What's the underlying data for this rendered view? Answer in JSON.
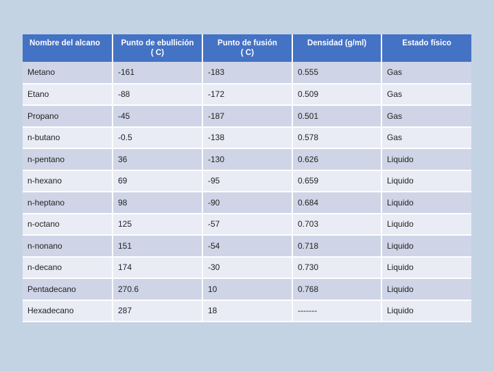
{
  "table": {
    "headers": [
      [
        "Nombre del alcano"
      ],
      [
        "Punto de ebullición",
        "( C)"
      ],
      [
        "Punto de fusión",
        "( C)"
      ],
      [
        "Densidad (g/ml)"
      ],
      [
        "Estado físico"
      ]
    ],
    "rows": [
      [
        "Metano",
        "-161",
        "-183",
        "0.555",
        "Gas"
      ],
      [
        "Etano",
        "-88",
        "-172",
        "0.509",
        "Gas"
      ],
      [
        "Propano",
        "-45",
        "-187",
        "0.501",
        "Gas"
      ],
      [
        "n-butano",
        "-0.5",
        "-138",
        "0.578",
        "Gas"
      ],
      [
        "n-pentano",
        "36",
        "-130",
        "0.626",
        "Liquido"
      ],
      [
        "n-hexano",
        "69",
        "-95",
        "0.659",
        "Liquido"
      ],
      [
        "n-heptano",
        "98",
        "-90",
        "0.684",
        "Liquido"
      ],
      [
        "n-octano",
        "125",
        "-57",
        "0.703",
        "Liquido"
      ],
      [
        "n-nonano",
        "151",
        "-54",
        "0.718",
        "Liquido"
      ],
      [
        "n-decano",
        "174",
        "-30",
        "0.730",
        "Liquido"
      ],
      [
        "Pentadecano",
        "270.6",
        "10",
        "0.768",
        "Liquido"
      ],
      [
        "Hexadecano",
        "287",
        "18",
        "-------",
        "Liquido"
      ]
    ]
  },
  "colors": {
    "background": "#c3d3e3",
    "header": "#4472c4",
    "row_dark": "#cfd5e7",
    "row_light": "#e9ebf5"
  }
}
